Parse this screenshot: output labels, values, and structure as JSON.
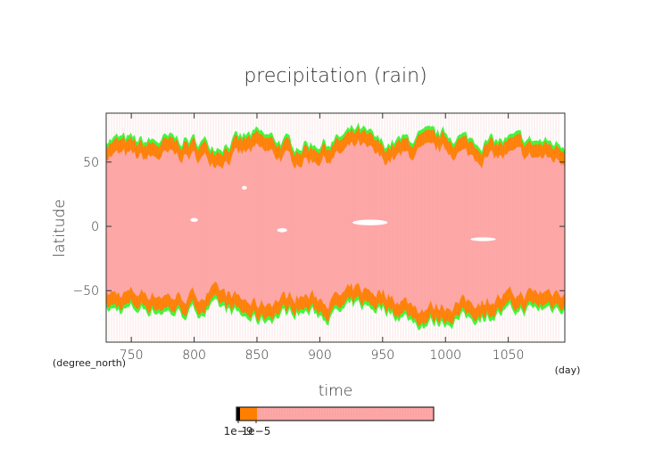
{
  "chart_data": {
    "type": "heatmap",
    "title": "precipitation (rain)",
    "xlabel": "time",
    "ylabel": "latitude",
    "x_units": "(day)",
    "y_units": "(degree_north)",
    "xlim": [
      730,
      1095
    ],
    "ylim": [
      -90,
      88
    ],
    "x_ticks": [
      750,
      800,
      850,
      900,
      950,
      1000,
      1050
    ],
    "y_ticks": [
      50,
      0,
      -50
    ],
    "x_tick_labels": [
      "750",
      "800",
      "850",
      "900",
      "950",
      "1000",
      "1050"
    ],
    "y_tick_labels": [
      "50",
      "0",
      "−50"
    ],
    "colorbar": {
      "tick_labels": [
        "1e−9",
        "1e−5"
      ],
      "colors": [
        "#000000",
        "#ff8000",
        "#ffa8a8"
      ]
    },
    "colors": {
      "core": "#ffa8a8",
      "edge_band": "#ff8000",
      "outer_fringe": "#33ff33",
      "sparse_fringe": "#6060ff"
    },
    "rain_band": {
      "time": [
        730,
        760,
        790,
        820,
        850,
        880,
        910,
        930,
        950,
        980,
        1000,
        1030,
        1060,
        1095
      ],
      "north_edge": [
        65,
        62,
        64,
        60,
        68,
        60,
        62,
        72,
        60,
        66,
        68,
        62,
        64,
        60
      ],
      "south_edge": [
        -62,
        -60,
        -64,
        -60,
        -70,
        -62,
        -66,
        -58,
        -60,
        -72,
        -70,
        -66,
        -62,
        -58
      ]
    }
  }
}
